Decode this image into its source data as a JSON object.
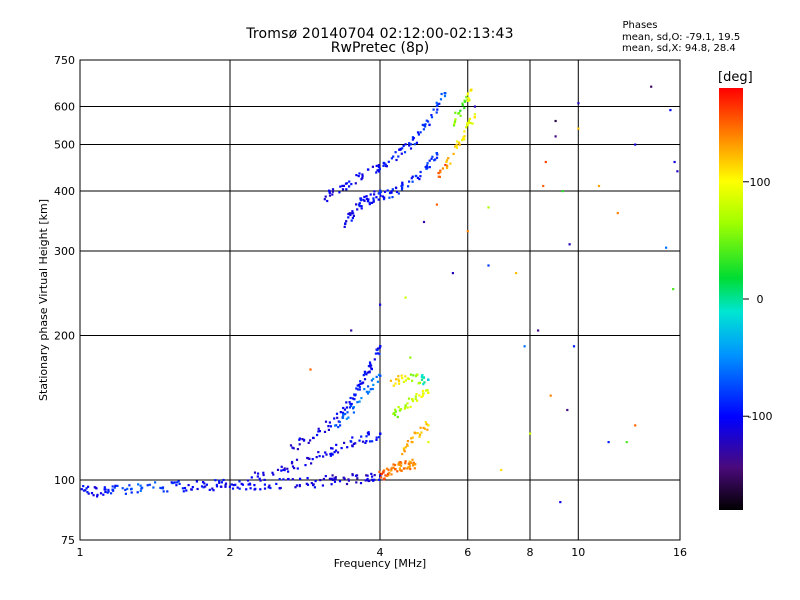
{
  "title_line1": "Tromsø 20140704 02:12:00-02:13:43",
  "title_line2": "RwPretec (8p)",
  "phases_label": "Phases",
  "stats": [
    "mean, sd,O: -79.1, 19.5",
    "mean, sd,X:  94.8, 28.4"
  ],
  "colorbar": {
    "label": "[deg]",
    "ticks": [
      "100",
      "0",
      "-100"
    ],
    "tick_values": [
      100,
      0,
      -100
    ],
    "range": [
      -180,
      180
    ]
  },
  "chart_data": {
    "type": "scatter",
    "xlabel": "Frequency [MHz]",
    "ylabel": "Stationary phase Virtual Height [km]",
    "x_scale": "log",
    "y_scale": "log",
    "xlim": [
      1,
      16
    ],
    "ylim": [
      75,
      750
    ],
    "x_ticks": [
      1,
      2,
      4,
      6,
      8,
      10,
      16
    ],
    "x_tick_labels": [
      "1",
      "2",
      "4",
      "6",
      "8",
      "10",
      "16"
    ],
    "y_ticks": [
      75,
      100,
      200,
      300,
      400,
      500,
      600,
      750
    ],
    "y_tick_labels": [
      "75",
      "100",
      "200",
      "300",
      "400",
      "500",
      "600",
      "750"
    ],
    "grid": true,
    "color_variable": "phase [deg]",
    "point_groups": [
      {
        "x": [
          1.0,
          1.05,
          1.1,
          1.15,
          1.2,
          1.3,
          1.4,
          1.5,
          1.6,
          1.7,
          1.8,
          1.9,
          2.0,
          2.1,
          2.2,
          2.4,
          2.6,
          2.8,
          3.0,
          3.2,
          3.4,
          3.6,
          3.8,
          4.0
        ],
        "y": [
          96,
          95,
          94,
          95,
          96,
          96,
          97,
          97,
          97,
          97,
          97,
          98,
          98,
          98,
          98,
          98,
          99,
          99,
          99,
          100,
          100,
          101,
          101,
          102
        ],
        "phase": [
          -100,
          -100,
          -95,
          -90,
          -80,
          -75,
          -80,
          -90,
          -100,
          -100,
          -100,
          -100,
          -100,
          -110,
          -100,
          -105,
          -110,
          -110,
          -115,
          -115,
          -115,
          -115,
          -110,
          -110
        ]
      },
      {
        "x": [
          4.0,
          4.1,
          4.2,
          4.3,
          4.4,
          4.5,
          4.6,
          4.7
        ],
        "y": [
          102,
          103,
          105,
          106,
          107,
          107,
          108,
          108
        ],
        "phase": [
          160,
          150,
          145,
          140,
          140,
          135,
          135,
          130
        ]
      },
      {
        "x": [
          2.2,
          2.4,
          2.6,
          2.8,
          3.0,
          3.2,
          3.4,
          3.6,
          3.8,
          4.0
        ],
        "y": [
          101,
          103,
          106,
          109,
          112,
          115,
          118,
          121,
          123,
          125
        ],
        "phase": [
          -110,
          -110,
          -110,
          -110,
          -105,
          -105,
          -100,
          -100,
          -95,
          -95
        ]
      },
      {
        "x": [
          2.6,
          2.8,
          3.0,
          3.2,
          3.4,
          3.5,
          3.6,
          3.7,
          3.8,
          3.9,
          4.0
        ],
        "y": [
          115,
          120,
          125,
          132,
          140,
          147,
          155,
          162,
          170,
          180,
          190
        ],
        "phase": [
          -110,
          -110,
          -105,
          -105,
          -100,
          -100,
          -95,
          -95,
          -100,
          -100,
          -110
        ]
      },
      {
        "x": [
          3.2,
          3.4,
          3.6,
          3.8,
          4.0
        ],
        "y": [
          128,
          135,
          145,
          155,
          165
        ],
        "phase": [
          -70,
          -60,
          -60,
          -55,
          -60
        ]
      },
      {
        "x": [
          4.2,
          4.4,
          4.6,
          4.8,
          5.0
        ],
        "y": [
          135,
          140,
          145,
          150,
          152
        ],
        "phase": [
          60,
          70,
          80,
          90,
          85
        ]
      },
      {
        "x": [
          4.4,
          4.6,
          4.8,
          5.0
        ],
        "y": [
          115,
          120,
          125,
          130
        ],
        "phase": [
          130,
          125,
          120,
          110
        ]
      },
      {
        "x": [
          4.2,
          4.4,
          4.6,
          4.8,
          5.0
        ],
        "y": [
          160,
          162,
          163,
          163,
          162
        ],
        "phase": [
          120,
          100,
          60,
          -10,
          -30
        ]
      },
      {
        "x": [
          3.4,
          3.5,
          3.6,
          3.7,
          3.8,
          3.9,
          4.0,
          4.2,
          4.4,
          4.6,
          4.8,
          5.0,
          5.2
        ],
        "y": [
          345,
          355,
          370,
          380,
          385,
          390,
          392,
          395,
          405,
          415,
          430,
          455,
          480
        ],
        "phase": [
          -110,
          -105,
          -100,
          -100,
          -95,
          -95,
          -90,
          -95,
          -95,
          -90,
          -85,
          -80,
          -70
        ]
      },
      {
        "x": [
          3.0,
          3.2,
          3.4,
          3.6,
          3.8,
          4.0,
          4.2,
          4.4,
          4.6,
          4.8,
          5.0,
          5.2,
          5.4
        ],
        "y": [
          380,
          395,
          410,
          425,
          435,
          450,
          465,
          480,
          500,
          525,
          560,
          600,
          640
        ],
        "phase": [
          -110,
          -110,
          -105,
          -105,
          -100,
          -100,
          -95,
          -95,
          -90,
          -85,
          -80,
          -75,
          -70
        ]
      },
      {
        "x": [
          5.2,
          5.4,
          5.6,
          5.8,
          6.0,
          6.2
        ],
        "y": [
          420,
          450,
          480,
          510,
          540,
          570
        ],
        "phase": [
          150,
          130,
          110,
          100,
          90,
          120
        ]
      },
      {
        "x": [
          5.6,
          5.8,
          6.0,
          6.1
        ],
        "y": [
          560,
          590,
          620,
          650
        ],
        "phase": [
          60,
          40,
          90,
          100
        ]
      },
      {
        "x": [
          4.0,
          4.6,
          4.9,
          5.2,
          5.6,
          6.0,
          6.2,
          6.6,
          7.0,
          7.5,
          7.8,
          8.0,
          8.3,
          8.6,
          8.8,
          9.0,
          9.2,
          9.3,
          9.5,
          9.6,
          9.8,
          10.0,
          11.0,
          11.5,
          12.0,
          12.5,
          13.0,
          14.0,
          15.0,
          15.3,
          15.5,
          15.6,
          15.8,
          16.0,
          3.5,
          2.9,
          4.5,
          5.0,
          6.6,
          8.5,
          9.0,
          10.0,
          13.0
        ],
        "y": [
          232,
          180,
          345,
          375,
          270,
          330,
          600,
          280,
          105,
          270,
          190,
          125,
          205,
          460,
          150,
          560,
          90,
          400,
          140,
          310,
          190,
          610,
          410,
          120,
          360,
          120,
          500,
          660,
          305,
          590,
          250,
          460,
          440,
          180,
          205,
          170,
          240,
          120,
          370,
          410,
          520,
          540,
          130
        ],
        "phase": [
          -110,
          60,
          -130,
          150,
          -120,
          140,
          -120,
          -80,
          110,
          120,
          -60,
          80,
          -140,
          160,
          140,
          -160,
          -110,
          30,
          -140,
          -120,
          -90,
          -120,
          130,
          -90,
          140,
          40,
          -110,
          -150,
          -60,
          -100,
          40,
          -110,
          -120,
          110,
          -130,
          150,
          80,
          90,
          70,
          150,
          -140,
          120,
          150
        ]
      }
    ]
  }
}
